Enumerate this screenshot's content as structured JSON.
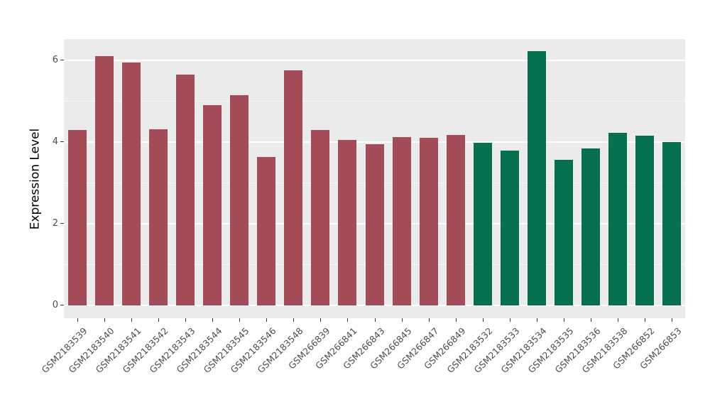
{
  "chart_data": {
    "type": "bar",
    "title": "",
    "xlabel": "",
    "ylabel": "Expression Level",
    "ylim": [
      0,
      6.5
    ],
    "yticks": [
      0,
      2,
      4,
      6
    ],
    "minor_yticks": [
      1,
      3,
      5
    ],
    "grid": true,
    "legend": false,
    "plot_background": "#EBEBEB",
    "tick_label_color": "#4D4D4D",
    "categories": [
      "GSM2183539",
      "GSM2183540",
      "GSM2183541",
      "GSM2183542",
      "GSM2183543",
      "GSM2183544",
      "GSM2183545",
      "GSM2183546",
      "GSM2183548",
      "GSM266839",
      "GSM266841",
      "GSM266843",
      "GSM266845",
      "GSM266847",
      "GSM266849",
      "GSM2183532",
      "GSM2183533",
      "GSM2183534",
      "GSM2183535",
      "GSM2183536",
      "GSM2183538",
      "GSM266852",
      "GSM266853"
    ],
    "values": [
      4.3,
      6.1,
      5.95,
      4.32,
      5.65,
      4.9,
      5.15,
      3.63,
      5.75,
      4.3,
      4.05,
      3.95,
      4.12,
      4.1,
      4.18,
      3.98,
      3.8,
      6.22,
      3.57,
      3.85,
      4.23,
      4.15,
      4.0
    ],
    "groups": [
      "group1",
      "group1",
      "group1",
      "group1",
      "group1",
      "group1",
      "group1",
      "group1",
      "group1",
      "group1",
      "group1",
      "group1",
      "group1",
      "group1",
      "group1",
      "group2",
      "group2",
      "group2",
      "group2",
      "group2",
      "group2",
      "group2",
      "group2"
    ],
    "group_colors": {
      "group1": "#A34B56",
      "group2": "#067050"
    }
  }
}
